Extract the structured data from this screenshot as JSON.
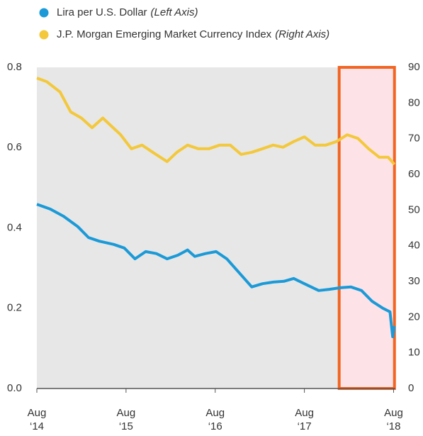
{
  "chart_data": {
    "type": "line",
    "series": [
      {
        "name": "Lira per U.S. Dollar",
        "axis_note": "(Left Axis)",
        "color": "#1b9ad7",
        "axis": "y",
        "x": [
          2014.58,
          2014.73,
          2014.88,
          2015.04,
          2015.16,
          2015.28,
          2015.44,
          2015.56,
          2015.68,
          2015.8,
          2015.92,
          2016.04,
          2016.16,
          2016.27,
          2016.35,
          2016.47,
          2016.59,
          2016.71,
          2016.83,
          2016.99,
          2017.11,
          2017.23,
          2017.35,
          2017.46,
          2017.58,
          2017.74,
          2017.86,
          2017.98,
          2018.1,
          2018.22,
          2018.34,
          2018.46,
          2018.54,
          2018.57,
          2018.59
        ],
        "values": [
          0.459,
          0.447,
          0.429,
          0.403,
          0.376,
          0.367,
          0.359,
          0.35,
          0.323,
          0.341,
          0.336,
          0.323,
          0.332,
          0.345,
          0.329,
          0.336,
          0.341,
          0.323,
          0.293,
          0.253,
          0.261,
          0.265,
          0.267,
          0.274,
          0.261,
          0.244,
          0.247,
          0.251,
          0.253,
          0.244,
          0.217,
          0.2,
          0.191,
          0.129,
          0.155
        ]
      },
      {
        "name": "J.P. Morgan Emerging Market Currency Index",
        "axis_note": "(Right Axis)",
        "color": "#f3c83b",
        "axis": "y2",
        "x": [
          2014.58,
          2014.69,
          2014.84,
          2014.96,
          2015.08,
          2015.2,
          2015.32,
          2015.4,
          2015.52,
          2015.64,
          2015.76,
          2015.88,
          2016.04,
          2016.15,
          2016.27,
          2016.39,
          2016.51,
          2016.63,
          2016.75,
          2016.87,
          2016.99,
          2017.11,
          2017.23,
          2017.34,
          2017.46,
          2017.58,
          2017.7,
          2017.82,
          2017.94,
          2018.06,
          2018.18,
          2018.3,
          2018.42,
          2018.52,
          2018.59
        ],
        "values": [
          87.0,
          86.0,
          83.1,
          77.5,
          75.8,
          73.1,
          75.8,
          73.9,
          71.1,
          67.2,
          68.2,
          66.2,
          63.6,
          66.2,
          68.2,
          67.2,
          67.2,
          68.2,
          68.2,
          65.6,
          66.2,
          67.2,
          68.2,
          67.6,
          69.2,
          70.5,
          68.2,
          68.2,
          69.2,
          71.1,
          70.1,
          67.2,
          64.8,
          64.8,
          62.8
        ]
      }
    ],
    "xlim": [
      2014.58,
      2018.6
    ],
    "xticks": [
      {
        "value": 2014.58,
        "label": [
          "Aug",
          "‘14"
        ]
      },
      {
        "value": 2015.58,
        "label": [
          "Aug",
          "‘15"
        ]
      },
      {
        "value": 2016.58,
        "label": [
          "Aug",
          "‘16"
        ]
      },
      {
        "value": 2017.58,
        "label": [
          "Aug",
          "‘17"
        ]
      },
      {
        "value": 2018.58,
        "label": [
          "Aug",
          "‘18"
        ]
      }
    ],
    "ylim": [
      0,
      0.8
    ],
    "yticks": [
      {
        "value": 0,
        "label": "0.0"
      },
      0.2,
      0.4,
      0.6,
      0.8
    ],
    "y2lim": [
      0,
      90
    ],
    "y2ticks": [
      0,
      10,
      20,
      30,
      40,
      50,
      60,
      70,
      80,
      90
    ],
    "highlight": {
      "xlim": [
        2017.97,
        2018.59
      ],
      "fill": "#fde3e8",
      "stroke": "#f26522"
    },
    "background": "#e7e7e7"
  }
}
